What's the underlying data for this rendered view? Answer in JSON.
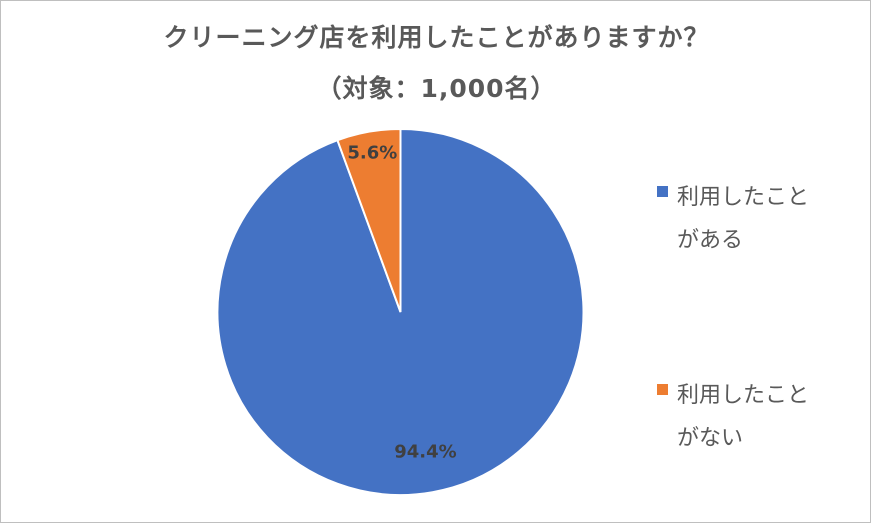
{
  "chart_data": {
    "type": "pie",
    "title": "クリーニング店を利用したことがありますか？",
    "subtitle": "（対象：1,000名）",
    "slices": [
      {
        "label": "利用したことがある",
        "value": 94.4,
        "display": "94.4%",
        "color": "#4472C4"
      },
      {
        "label": "利用したことがない",
        "value": 5.6,
        "display": "5.6%",
        "color": "#ED7D31"
      }
    ],
    "legend_position": "right"
  }
}
